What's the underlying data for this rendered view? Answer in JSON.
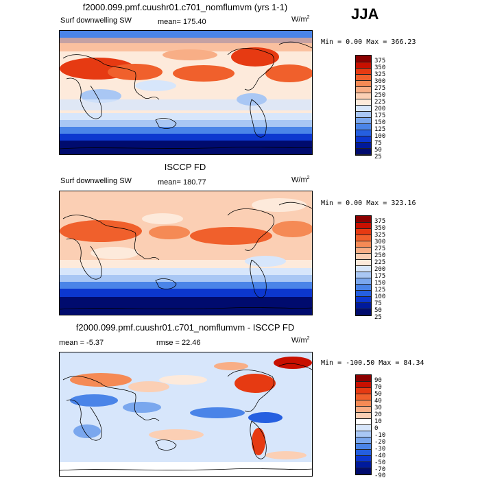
{
  "season": "JJA",
  "panels": [
    {
      "title": "f2000.099.pmf.cuushr01.c701_nomflumvm (yrs 1-1)",
      "field": "Surf downwelling SW",
      "mean_label": "mean=",
      "mean_value": "175.40",
      "units": "W/m",
      "units_exp": "2",
      "minmax": "Min =    0.00 Max = 366.23",
      "colorbar_levels": [
        "375",
        "350",
        "325",
        "300",
        "275",
        "250",
        "225",
        "200",
        "175",
        "150",
        "125",
        "100",
        "75",
        "50",
        "25"
      ]
    },
    {
      "title": "ISCCP FD",
      "field": "Surf downwelling SW",
      "mean_label": "mean=",
      "mean_value": "180.77",
      "units": "W/m",
      "units_exp": "2",
      "minmax": "Min =    0.00 Max = 323.16",
      "colorbar_levels": [
        "375",
        "350",
        "325",
        "300",
        "275",
        "250",
        "225",
        "200",
        "175",
        "150",
        "125",
        "100",
        "75",
        "50",
        "25"
      ]
    },
    {
      "title": "f2000.099.pmf.cuushr01.c701_nomflumvm - ISCCP FD",
      "mean_text": "mean =   -5.37",
      "rmse_text": "rmse =  22.46",
      "units": "W/m",
      "units_exp": "2",
      "minmax": "Min = -100.50 Max =  84.34",
      "colorbar_levels": [
        "90",
        "70",
        "50",
        "40",
        "30",
        "20",
        "10",
        "0",
        "-10",
        "-20",
        "-30",
        "-40",
        "-50",
        "-70",
        "-90"
      ]
    }
  ],
  "colors": {
    "abs_scale": [
      "#8b0000",
      "#c81000",
      "#e63a12",
      "#f0602c",
      "#f58a55",
      "#f8ae86",
      "#fbcfb4",
      "#fdeadb",
      "#d7e6fb",
      "#a9c7f4",
      "#7aa7ee",
      "#4a84e8",
      "#255fe0",
      "#0c37cf",
      "#001a9c",
      "#000b6e"
    ],
    "diff_scale": [
      "#8b0000",
      "#c81000",
      "#e63a12",
      "#f0602c",
      "#f58a55",
      "#f8ae86",
      "#fbcfb4",
      "#ffffff",
      "#d7e6fb",
      "#a9c7f4",
      "#7aa7ee",
      "#4a84e8",
      "#255fe0",
      "#0c37cf",
      "#001a9c",
      "#000b6e"
    ]
  },
  "chart_data": [
    {
      "type": "heatmap",
      "title": "f2000.099.pmf.cuushr01.c701_nomflumvm (yrs 1-1)",
      "subtitle": "Surf downwelling SW",
      "units": "W/m2",
      "mean": 175.4,
      "min": 0.0,
      "max": 366.23,
      "contour_levels": [
        25,
        50,
        75,
        100,
        125,
        150,
        175,
        200,
        225,
        250,
        275,
        300,
        325,
        350,
        375
      ]
    },
    {
      "type": "heatmap",
      "title": "ISCCP FD",
      "subtitle": "Surf downwelling SW",
      "units": "W/m2",
      "mean": 180.77,
      "min": 0.0,
      "max": 323.16,
      "contour_levels": [
        25,
        50,
        75,
        100,
        125,
        150,
        175,
        200,
        225,
        250,
        275,
        300,
        325,
        350,
        375
      ]
    },
    {
      "type": "heatmap",
      "title": "f2000.099.pmf.cuushr01.c701_nomflumvm - ISCCP FD",
      "units": "W/m2",
      "mean": -5.37,
      "rmse": 22.46,
      "min": -100.5,
      "max": 84.34,
      "contour_levels": [
        -90,
        -70,
        -50,
        -40,
        -30,
        -20,
        -10,
        0,
        10,
        20,
        30,
        40,
        50,
        70,
        90
      ]
    }
  ]
}
